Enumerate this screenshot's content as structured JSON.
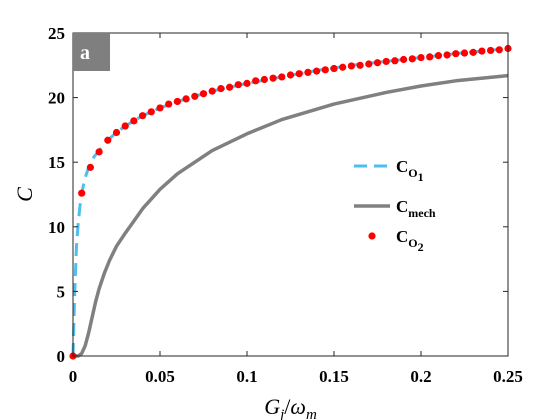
{
  "chart_data": {
    "type": "line",
    "panel_label": "a",
    "xlabel": "G_j/ω_m",
    "ylabel": "C",
    "xlim": [
      0,
      0.25
    ],
    "ylim": [
      0,
      25
    ],
    "x_ticks": [
      0,
      0.05,
      0.1,
      0.15,
      0.2,
      0.25
    ],
    "x_tick_labels": [
      "0",
      "0.05",
      "0.1",
      "0.15",
      "0.2",
      "0.25"
    ],
    "y_ticks": [
      0,
      5,
      10,
      15,
      20,
      25
    ],
    "y_tick_labels": [
      "0",
      "5",
      "10",
      "15",
      "20",
      "25"
    ],
    "grid": false,
    "legend_position": "right-center",
    "series": [
      {
        "name": "C_O1",
        "style": "dashed",
        "color": "#4dbeee",
        "x": [
          0,
          0.001,
          0.002,
          0.003,
          0.004,
          0.005,
          0.006,
          0.007,
          0.008,
          0.009,
          0.01,
          0.012,
          0.015,
          0.02,
          0.025,
          0.03,
          0.04,
          0.05,
          0.06,
          0.08,
          0.1,
          0.12,
          0.14,
          0.16,
          0.18,
          0.2,
          0.22,
          0.25
        ],
        "y": [
          0,
          5,
          8.5,
          10.3,
          11.6,
          12.6,
          13.2,
          13.8,
          14.2,
          14.6,
          14.9,
          15.4,
          15.9,
          16.7,
          17.3,
          17.8,
          18.6,
          19.2,
          19.7,
          20.5,
          21.1,
          21.6,
          22.1,
          22.5,
          22.8,
          23.1,
          23.4,
          23.8
        ]
      },
      {
        "name": "C_mech",
        "style": "solid",
        "color": "#808080",
        "x": [
          0,
          0.003,
          0.005,
          0.007,
          0.009,
          0.011,
          0.013,
          0.015,
          0.018,
          0.021,
          0.025,
          0.03,
          0.04,
          0.05,
          0.06,
          0.08,
          0.1,
          0.12,
          0.15,
          0.18,
          0.2,
          0.22,
          0.25
        ],
        "y": [
          0,
          0,
          0.2,
          0.8,
          1.8,
          3,
          4.2,
          5.2,
          6.4,
          7.4,
          8.5,
          9.5,
          11.4,
          12.9,
          14.1,
          15.9,
          17.2,
          18.3,
          19.5,
          20.4,
          20.9,
          21.3,
          21.7
        ]
      },
      {
        "name": "C_O2",
        "style": "markers",
        "color": "#ff0000",
        "x": [
          0,
          0.005,
          0.01,
          0.015,
          0.02,
          0.025,
          0.03,
          0.035,
          0.04,
          0.045,
          0.05,
          0.055,
          0.06,
          0.065,
          0.07,
          0.075,
          0.08,
          0.085,
          0.09,
          0.095,
          0.1,
          0.105,
          0.11,
          0.115,
          0.12,
          0.125,
          0.13,
          0.135,
          0.14,
          0.145,
          0.15,
          0.155,
          0.16,
          0.165,
          0.17,
          0.175,
          0.18,
          0.185,
          0.19,
          0.195,
          0.2,
          0.205,
          0.21,
          0.215,
          0.22,
          0.225,
          0.23,
          0.235,
          0.24,
          0.245,
          0.25
        ],
        "y": [
          0,
          12.6,
          14.6,
          15.8,
          16.7,
          17.3,
          17.8,
          18.2,
          18.6,
          18.9,
          19.2,
          19.5,
          19.7,
          19.9,
          20.1,
          20.3,
          20.5,
          20.7,
          20.8,
          21,
          21.1,
          21.3,
          21.4,
          21.5,
          21.6,
          21.75,
          21.85,
          21.95,
          22.05,
          22.15,
          22.25,
          22.35,
          22.45,
          22.5,
          22.6,
          22.7,
          22.8,
          22.85,
          22.95,
          23,
          23.1,
          23.15,
          23.25,
          23.3,
          23.4,
          23.45,
          23.5,
          23.6,
          23.65,
          23.7,
          23.8
        ]
      }
    ]
  }
}
